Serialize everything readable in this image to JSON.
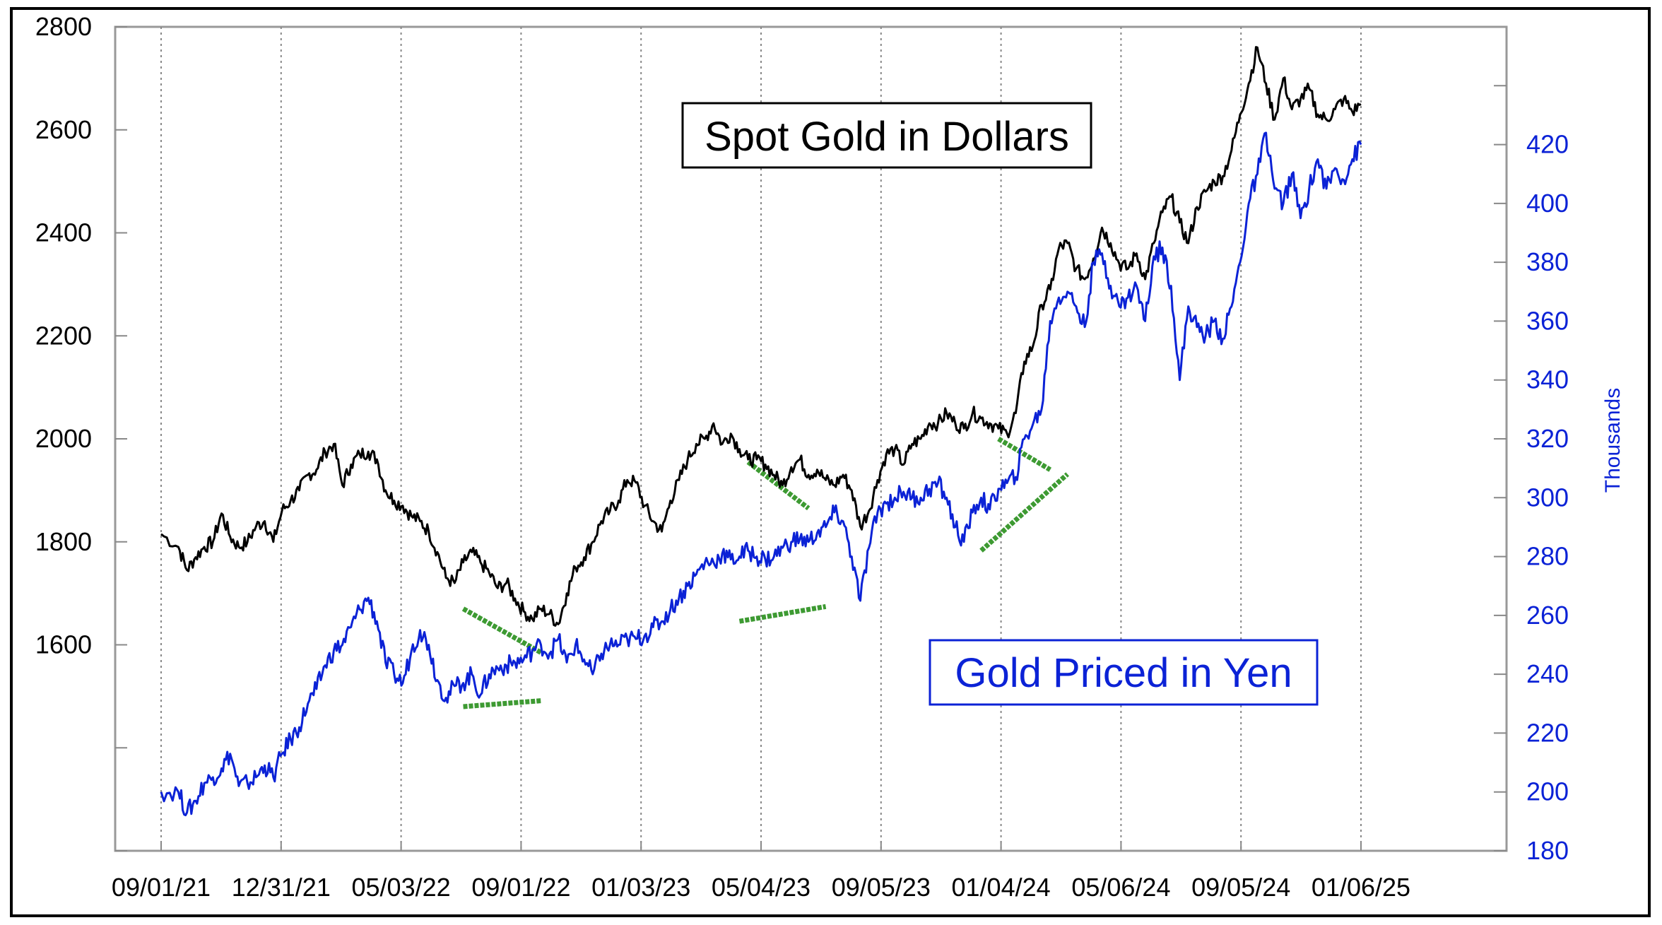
{
  "chart_data": {
    "type": "line",
    "x_tick_labels": [
      "09/01/21",
      "12/31/21",
      "05/03/22",
      "09/01/22",
      "01/03/23",
      "05/04/23",
      "09/05/23",
      "01/04/24",
      "05/06/24",
      "09/05/24",
      "01/06/25"
    ],
    "y_left": {
      "ticks": [
        "1600",
        "1800",
        "2000",
        "2200",
        "2400",
        "2600",
        "2800"
      ],
      "range": [
        1200,
        2800
      ]
    },
    "y_right": {
      "label": "Thousands",
      "ticks": [
        "180",
        "200",
        "220",
        "240",
        "260",
        "280",
        "300",
        "320",
        "340",
        "360",
        "380",
        "400",
        "420"
      ],
      "range": [
        180,
        460
      ]
    },
    "grid": "vertical dotted lines at each x tick",
    "series": [
      {
        "name": "Spot Gold in Dollars",
        "axis": "left",
        "color": "#000000",
        "points": [
          [
            0,
            1815
          ],
          [
            2,
            1790
          ],
          [
            3,
            1745
          ],
          [
            4,
            1770
          ],
          [
            5,
            1790
          ],
          [
            6,
            1800
          ],
          [
            7,
            1855
          ],
          [
            8,
            1810
          ],
          [
            9,
            1790
          ],
          [
            10,
            1800
          ],
          [
            11,
            1830
          ],
          [
            12,
            1840
          ],
          [
            13,
            1800
          ],
          [
            14,
            1860
          ],
          [
            15,
            1880
          ],
          [
            16,
            1900
          ],
          [
            17,
            1930
          ],
          [
            18,
            1940
          ],
          [
            19,
            1975
          ],
          [
            20,
            1990
          ],
          [
            21,
            1910
          ],
          [
            22,
            1950
          ],
          [
            23,
            1970
          ],
          [
            24,
            1975
          ],
          [
            25,
            1960
          ],
          [
            26,
            1900
          ],
          [
            27,
            1880
          ],
          [
            28,
            1870
          ],
          [
            29,
            1850
          ],
          [
            30,
            1840
          ],
          [
            31,
            1820
          ],
          [
            32,
            1780
          ],
          [
            33,
            1730
          ],
          [
            34,
            1720
          ],
          [
            35,
            1760
          ],
          [
            36,
            1780
          ],
          [
            37,
            1760
          ],
          [
            38,
            1740
          ],
          [
            39,
            1710
          ],
          [
            40,
            1720
          ],
          [
            41,
            1690
          ],
          [
            42,
            1665
          ],
          [
            43,
            1650
          ],
          [
            44,
            1670
          ],
          [
            45,
            1660
          ],
          [
            46,
            1640
          ],
          [
            47,
            1700
          ],
          [
            48,
            1750
          ],
          [
            49,
            1770
          ],
          [
            50,
            1800
          ],
          [
            51,
            1840
          ],
          [
            52,
            1860
          ],
          [
            53,
            1880
          ],
          [
            54,
            1920
          ],
          [
            55,
            1915
          ],
          [
            56,
            1870
          ],
          [
            57,
            1840
          ],
          [
            58,
            1820
          ],
          [
            59,
            1880
          ],
          [
            60,
            1920
          ],
          [
            61,
            1960
          ],
          [
            62,
            1990
          ],
          [
            63,
            2000
          ],
          [
            64,
            2030
          ],
          [
            65,
            1990
          ],
          [
            66,
            2010
          ],
          [
            67,
            1980
          ],
          [
            68,
            1960
          ],
          [
            69,
            1960
          ],
          [
            70,
            1950
          ],
          [
            71,
            1930
          ],
          [
            72,
            1910
          ],
          [
            73,
            1945
          ],
          [
            74,
            1960
          ],
          [
            75,
            1930
          ],
          [
            76,
            1940
          ],
          [
            77,
            1920
          ],
          [
            78,
            1910
          ],
          [
            79,
            1930
          ],
          [
            80,
            1900
          ],
          [
            81,
            1830
          ],
          [
            82,
            1860
          ],
          [
            83,
            1920
          ],
          [
            84,
            1970
          ],
          [
            85,
            1980
          ],
          [
            86,
            1950
          ],
          [
            87,
            1990
          ],
          [
            88,
            2000
          ],
          [
            89,
            2030
          ],
          [
            90,
            2030
          ],
          [
            91,
            2050
          ],
          [
            92,
            2030
          ],
          [
            93,
            2020
          ],
          [
            94,
            2050
          ],
          [
            95,
            2040
          ],
          [
            96,
            2030
          ],
          [
            97,
            2020
          ],
          [
            98,
            2010
          ],
          [
            99,
            2050
          ],
          [
            100,
            2150
          ],
          [
            101,
            2180
          ],
          [
            102,
            2260
          ],
          [
            103,
            2290
          ],
          [
            104,
            2370
          ],
          [
            105,
            2380
          ],
          [
            106,
            2330
          ],
          [
            107,
            2310
          ],
          [
            108,
            2350
          ],
          [
            109,
            2410
          ],
          [
            110,
            2380
          ],
          [
            111,
            2340
          ],
          [
            112,
            2330
          ],
          [
            113,
            2360
          ],
          [
            114,
            2310
          ],
          [
            115,
            2380
          ],
          [
            116,
            2440
          ],
          [
            117,
            2470
          ],
          [
            118,
            2420
          ],
          [
            119,
            2380
          ],
          [
            120,
            2450
          ],
          [
            121,
            2480
          ],
          [
            122,
            2500
          ],
          [
            123,
            2510
          ],
          [
            124,
            2560
          ],
          [
            125,
            2630
          ],
          [
            126,
            2690
          ],
          [
            127,
            2760
          ],
          [
            128,
            2690
          ],
          [
            129,
            2620
          ],
          [
            130,
            2700
          ],
          [
            131,
            2640
          ],
          [
            132,
            2660
          ],
          [
            133,
            2680
          ],
          [
            134,
            2630
          ],
          [
            135,
            2620
          ],
          [
            136,
            2640
          ],
          [
            137,
            2660
          ],
          [
            138,
            2635
          ],
          [
            139,
            2650
          ]
        ]
      },
      {
        "name": "Gold Priced in Yen",
        "axis": "right",
        "color": "#0b22d6",
        "points": [
          [
            0,
            200
          ],
          [
            2,
            200
          ],
          [
            3,
            193
          ],
          [
            4,
            197
          ],
          [
            5,
            203
          ],
          [
            6,
            205
          ],
          [
            7,
            208
          ],
          [
            8,
            213
          ],
          [
            9,
            202
          ],
          [
            10,
            203
          ],
          [
            11,
            205
          ],
          [
            12,
            209
          ],
          [
            13,
            205
          ],
          [
            14,
            213
          ],
          [
            15,
            218
          ],
          [
            16,
            222
          ],
          [
            17,
            230
          ],
          [
            18,
            235
          ],
          [
            19,
            243
          ],
          [
            20,
            248
          ],
          [
            21,
            250
          ],
          [
            22,
            256
          ],
          [
            23,
            262
          ],
          [
            24,
            266
          ],
          [
            25,
            258
          ],
          [
            26,
            244
          ],
          [
            27,
            240
          ],
          [
            28,
            237
          ],
          [
            29,
            248
          ],
          [
            30,
            255
          ],
          [
            31,
            250
          ],
          [
            32,
            238
          ],
          [
            33,
            232
          ],
          [
            34,
            236
          ],
          [
            35,
            237
          ],
          [
            36,
            240
          ],
          [
            37,
            233
          ],
          [
            38,
            240
          ],
          [
            39,
            242
          ],
          [
            40,
            243
          ],
          [
            41,
            244
          ],
          [
            42,
            245
          ],
          [
            43,
            248
          ],
          [
            44,
            250
          ],
          [
            45,
            247
          ],
          [
            46,
            252
          ],
          [
            47,
            244
          ],
          [
            48,
            250
          ],
          [
            49,
            245
          ],
          [
            50,
            240
          ],
          [
            51,
            247
          ],
          [
            52,
            250
          ],
          [
            53,
            250
          ],
          [
            54,
            252
          ],
          [
            55,
            252
          ],
          [
            56,
            253
          ],
          [
            57,
            256
          ],
          [
            58,
            258
          ],
          [
            59,
            262
          ],
          [
            60,
            266
          ],
          [
            61,
            270
          ],
          [
            62,
            274
          ],
          [
            63,
            278
          ],
          [
            64,
            278
          ],
          [
            65,
            281
          ],
          [
            66,
            279
          ],
          [
            67,
            280
          ],
          [
            68,
            282
          ],
          [
            69,
            280
          ],
          [
            70,
            279
          ],
          [
            71,
            280
          ],
          [
            72,
            283
          ],
          [
            73,
            285
          ],
          [
            74,
            286
          ],
          [
            75,
            285
          ],
          [
            76,
            288
          ],
          [
            77,
            290
          ],
          [
            78,
            295
          ],
          [
            79,
            292
          ],
          [
            80,
            280
          ],
          [
            81,
            265
          ],
          [
            82,
            283
          ],
          [
            83,
            295
          ],
          [
            84,
            298
          ],
          [
            85,
            300
          ],
          [
            86,
            302
          ],
          [
            87,
            300
          ],
          [
            88,
            300
          ],
          [
            89,
            303
          ],
          [
            90,
            305
          ],
          [
            91,
            300
          ],
          [
            92,
            290
          ],
          [
            93,
            285
          ],
          [
            94,
            295
          ],
          [
            95,
            300
          ],
          [
            96,
            296
          ],
          [
            97,
            303
          ],
          [
            98,
            305
          ],
          [
            99,
            307
          ],
          [
            100,
            320
          ],
          [
            101,
            325
          ],
          [
            102,
            330
          ],
          [
            103,
            360
          ],
          [
            104,
            368
          ],
          [
            105,
            370
          ],
          [
            106,
            365
          ],
          [
            107,
            358
          ],
          [
            108,
            380
          ],
          [
            109,
            383
          ],
          [
            110,
            372
          ],
          [
            111,
            365
          ],
          [
            112,
            368
          ],
          [
            113,
            372
          ],
          [
            114,
            360
          ],
          [
            115,
            382
          ],
          [
            116,
            385
          ],
          [
            117,
            372
          ],
          [
            118,
            340
          ],
          [
            119,
            365
          ],
          [
            120,
            358
          ],
          [
            121,
            355
          ],
          [
            122,
            360
          ],
          [
            123,
            354
          ],
          [
            124,
            365
          ],
          [
            125,
            380
          ],
          [
            126,
            400
          ],
          [
            127,
            410
          ],
          [
            128,
            424
          ],
          [
            129,
            405
          ],
          [
            130,
            400
          ],
          [
            131,
            410
          ],
          [
            132,
            395
          ],
          [
            133,
            405
          ],
          [
            134,
            415
          ],
          [
            135,
            405
          ],
          [
            136,
            412
          ],
          [
            137,
            408
          ],
          [
            138,
            415
          ],
          [
            139,
            420
          ]
        ]
      }
    ],
    "annotations": [
      {
        "text": "Spot Gold in Dollars",
        "color": "#000000"
      },
      {
        "text": "Gold Priced in Yen",
        "color": "#0b22d6"
      }
    ],
    "trend_marks": {
      "color": "#3d9a32",
      "segments": [
        {
          "axis": "left",
          "from": [
            35,
            1670
          ],
          "to": [
            44,
            1585
          ]
        },
        {
          "axis": "right",
          "from": [
            35,
            229
          ],
          "to": [
            44,
            231
          ]
        },
        {
          "axis": "left",
          "from": [
            68,
            1955
          ],
          "to": [
            75,
            1865
          ]
        },
        {
          "axis": "right",
          "from": [
            67,
            258
          ],
          "to": [
            77,
            263
          ]
        },
        {
          "axis": "left",
          "from": [
            97,
            2000
          ],
          "to": [
            103,
            1940
          ]
        },
        {
          "axis": "right",
          "from": [
            95,
            282
          ],
          "to": [
            105,
            308
          ]
        }
      ]
    }
  }
}
